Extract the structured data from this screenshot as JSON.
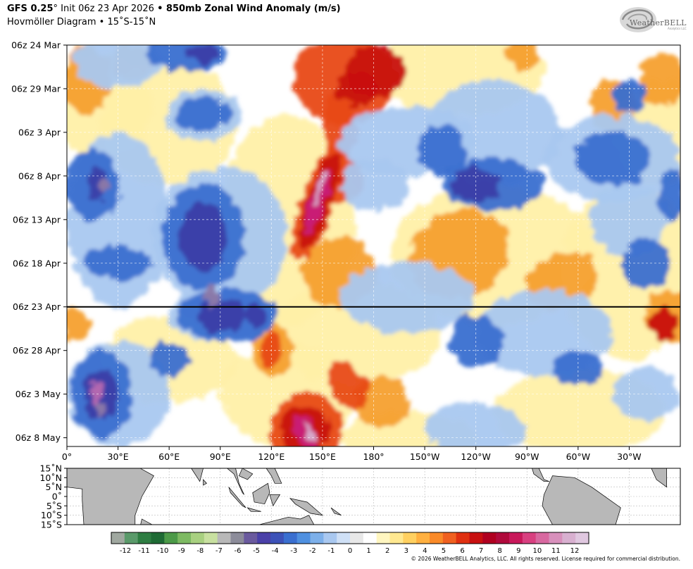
{
  "header": {
    "title_bold_1": "GFS 0.25",
    "title_deg": "°",
    "title_init": " Init 06z 23 Apr 2026 ",
    "title_bullet": "•",
    "title_bold_2": " 850mb Zonal Wind Anomaly (m/s)",
    "subtitle": "Hovmöller Diagram • 15˚S-15˚N"
  },
  "logo": {
    "text": "WeatherBELL",
    "sub": "Analytics LLC"
  },
  "footer": {
    "copyright": "© 2026 WeatherBELL Analytics, LLC. All rights reserved. License required for commercial distribution."
  },
  "colors": {
    "strong_negative": "#3b3fa8",
    "negative": "#3a6fd0",
    "weak_negative": "#a9c8f0",
    "neutral": "#ffffff",
    "weak_positive": "#fff0a8",
    "positive": "#f5a030",
    "strong_positive": "#c0101a",
    "extreme_positive": "#c8207a",
    "land": "#b8b8b8",
    "init_line": "#000000"
  },
  "chart_data": {
    "type": "heatmap",
    "title": "GFS 0.25° Init 06z 23 Apr 2026 • 850mb Zonal Wind Anomaly (m/s)",
    "subtitle": "Hovmöller Diagram • 15˚S-15˚N",
    "x_ticks": [
      "0°",
      "30°E",
      "60°E",
      "90°E",
      "120°E",
      "150°E",
      "180°",
      "150°W",
      "120°W",
      "90°W",
      "60°W",
      "30°W"
    ],
    "x_tick_values": [
      0,
      30,
      60,
      90,
      120,
      150,
      180,
      210,
      240,
      270,
      300,
      330
    ],
    "xlim": [
      0,
      360
    ],
    "y_ticks": [
      "06z 24 Mar",
      "06z 29 Mar",
      "06z 3 Apr",
      "06z 8 Apr",
      "06z 13 Apr",
      "06z 18 Apr",
      "06z 23 Apr",
      "06z 28 Apr",
      "06z 3 May",
      "06z 8 May"
    ],
    "y_tick_days": [
      0,
      5,
      10,
      15,
      20,
      25,
      30,
      35,
      40,
      45
    ],
    "ylim_days": [
      0,
      46
    ],
    "init_line": "06z 23 Apr",
    "grid": true,
    "map_lat_ticks": [
      "15˚N",
      "10˚N",
      "5˚N",
      "0˚",
      "5˚S",
      "10˚S",
      "15˚S"
    ],
    "map_lat_values": [
      15,
      10,
      5,
      0,
      -5,
      -10,
      -15
    ],
    "colorbar": {
      "labels": [
        "-12",
        "-11",
        "-10",
        "-9",
        "-8",
        "-7",
        "-6",
        "-5",
        "-4",
        "-3",
        "-2",
        "-1",
        "0",
        "1",
        "2",
        "3",
        "4",
        "5",
        "6",
        "7",
        "8",
        "9",
        "10",
        "11",
        "12"
      ],
      "values": [
        -12,
        -11,
        -10,
        -9,
        -8,
        -7,
        -6,
        -5,
        -4,
        -3,
        -2,
        -1,
        0,
        1,
        2,
        3,
        4,
        5,
        6,
        7,
        8,
        9,
        10,
        11,
        12
      ],
      "colors": [
        "#a0a8a0",
        "#5a9a6a",
        "#2e7d42",
        "#1e6a34",
        "#4c9a48",
        "#7dba62",
        "#a8d080",
        "#c8e0a0",
        "#b8b8b8",
        "#8c8c9a",
        "#6a5a9e",
        "#4a40a8",
        "#3d52b8",
        "#3a6fd0",
        "#4f90e0",
        "#7db0ea",
        "#a9c8f0",
        "#cfe0f6",
        "#e8e8e8",
        "#ffffff",
        "#fff6c0",
        "#ffe890",
        "#ffd060",
        "#ffb040",
        "#fa8a28",
        "#f06020",
        "#e03010",
        "#c81010",
        "#b00020",
        "#b00a3c",
        "#c8185a",
        "#d84080",
        "#d868a0",
        "#d890bc",
        "#d8b0d0",
        "#e0c8e0"
      ]
    },
    "features": [
      {
        "name": "westerly burst",
        "lon": 148,
        "day": 18,
        "value": 12
      },
      {
        "name": "westerly burst",
        "lon": 148,
        "day": 44,
        "value": 11
      },
      {
        "name": "westerly anomaly",
        "lon": 160,
        "day": 5,
        "value": 7
      },
      {
        "name": "easterly anomaly",
        "lon": 240,
        "day": 16,
        "value": -6
      },
      {
        "name": "easterly anomaly",
        "lon": 90,
        "day": 25,
        "value": -8
      },
      {
        "name": "easterly anomaly",
        "lon": 18,
        "day": 40,
        "value": -7
      },
      {
        "name": "easterly anomaly",
        "lon": 70,
        "day": 2,
        "value": -5
      },
      {
        "name": "westerly anomaly",
        "lon": 355,
        "day": 32,
        "value": 7
      }
    ]
  }
}
